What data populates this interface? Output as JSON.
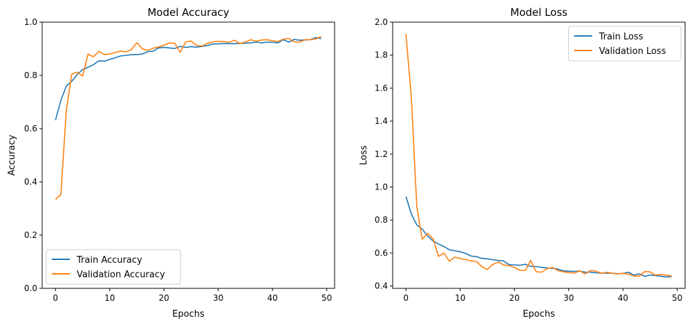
{
  "colors": {
    "train": "#1f77b4",
    "validation": "#ff7f0e"
  },
  "chart_data": [
    {
      "type": "line",
      "title": "Model Accuracy",
      "xlabel": "Epochs",
      "ylabel": "Accuracy",
      "xlim": [
        -2.45,
        51.45
      ],
      "ylim": [
        0,
        1.0
      ],
      "xticks": [
        0,
        10,
        20,
        30,
        40,
        50
      ],
      "yticks": [
        0.0,
        0.2,
        0.4,
        0.6,
        0.8,
        1.0
      ],
      "xtick_labels": [
        "0",
        "10",
        "20",
        "30",
        "40",
        "50"
      ],
      "ytick_labels": [
        "0.0",
        "0.2",
        "0.4",
        "0.6",
        "0.8",
        "1.0"
      ],
      "legend_position": "lower-left",
      "series": [
        {
          "name": "Train Accuracy",
          "color_key": "train",
          "values": [
            0.632,
            0.706,
            0.76,
            0.778,
            0.803,
            0.822,
            0.83,
            0.84,
            0.855,
            0.853,
            0.86,
            0.866,
            0.873,
            0.875,
            0.878,
            0.878,
            0.88,
            0.889,
            0.891,
            0.903,
            0.905,
            0.903,
            0.901,
            0.909,
            0.905,
            0.908,
            0.906,
            0.909,
            0.912,
            0.918,
            0.918,
            0.92,
            0.919,
            0.919,
            0.92,
            0.921,
            0.922,
            0.925,
            0.922,
            0.925,
            0.924,
            0.922,
            0.934,
            0.925,
            0.935,
            0.932,
            0.933,
            0.934,
            0.942,
            0.938
          ]
        },
        {
          "name": "Validation Accuracy",
          "color_key": "validation",
          "values": [
            0.334,
            0.352,
            0.67,
            0.805,
            0.812,
            0.797,
            0.88,
            0.87,
            0.89,
            0.878,
            0.88,
            0.886,
            0.891,
            0.888,
            0.897,
            0.923,
            0.9,
            0.894,
            0.902,
            0.907,
            0.913,
            0.922,
            0.92,
            0.887,
            0.926,
            0.929,
            0.913,
            0.91,
            0.92,
            0.926,
            0.928,
            0.927,
            0.924,
            0.932,
            0.92,
            0.925,
            0.934,
            0.928,
            0.933,
            0.934,
            0.93,
            0.927,
            0.936,
            0.939,
            0.926,
            0.925,
            0.934,
            0.934,
            0.937,
            0.946
          ]
        }
      ]
    },
    {
      "type": "line",
      "title": "Model Loss",
      "xlabel": "Epochs",
      "ylabel": "Loss",
      "xlim": [
        -2.45,
        51.45
      ],
      "ylim": [
        0.386,
        2.0
      ],
      "xticks": [
        0,
        10,
        20,
        30,
        40,
        50
      ],
      "yticks": [
        0.4,
        0.6,
        0.8,
        1.0,
        1.2,
        1.4,
        1.6,
        1.8,
        2.0
      ],
      "xtick_labels": [
        "0",
        "10",
        "20",
        "30",
        "40",
        "50"
      ],
      "ytick_labels": [
        "0.4",
        "0.6",
        "0.8",
        "1.0",
        "1.2",
        "1.4",
        "1.6",
        "1.8",
        "2.0"
      ],
      "legend_position": "top-right",
      "series": [
        {
          "name": "Train Loss",
          "color_key": "train",
          "values": [
            0.942,
            0.836,
            0.77,
            0.745,
            0.703,
            0.673,
            0.655,
            0.64,
            0.62,
            0.614,
            0.608,
            0.598,
            0.582,
            0.578,
            0.568,
            0.565,
            0.56,
            0.555,
            0.552,
            0.53,
            0.528,
            0.526,
            0.532,
            0.519,
            0.518,
            0.513,
            0.51,
            0.507,
            0.503,
            0.492,
            0.49,
            0.489,
            0.49,
            0.484,
            0.484,
            0.48,
            0.479,
            0.478,
            0.478,
            0.475,
            0.476,
            0.484,
            0.466,
            0.474,
            0.459,
            0.467,
            0.463,
            0.459,
            0.455,
            0.458
          ]
        },
        {
          "name": "Validation Loss",
          "color_key": "validation",
          "values": [
            1.928,
            1.54,
            0.88,
            0.684,
            0.72,
            0.686,
            0.58,
            0.6,
            0.55,
            0.575,
            0.567,
            0.56,
            0.553,
            0.549,
            0.518,
            0.5,
            0.531,
            0.545,
            0.528,
            0.524,
            0.513,
            0.495,
            0.495,
            0.555,
            0.487,
            0.484,
            0.506,
            0.512,
            0.494,
            0.486,
            0.482,
            0.478,
            0.493,
            0.474,
            0.493,
            0.491,
            0.477,
            0.483,
            0.478,
            0.473,
            0.478,
            0.472,
            0.461,
            0.46,
            0.488,
            0.486,
            0.466,
            0.47,
            0.466,
            0.46
          ]
        }
      ]
    }
  ]
}
